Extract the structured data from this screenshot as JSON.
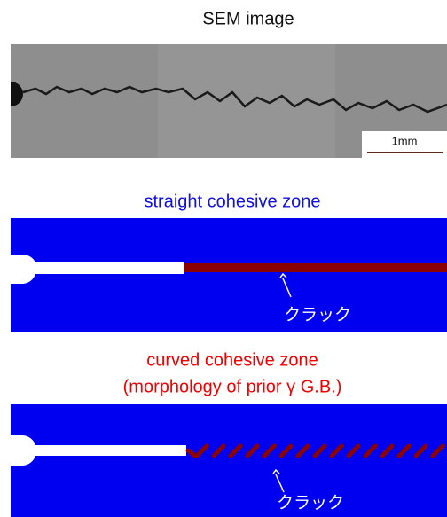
{
  "sem": {
    "title": "SEM image",
    "scale_bar": "1mm"
  },
  "straight": {
    "title": "straight cohesive zone",
    "crack_label": "クラック"
  },
  "curved": {
    "title": "curved cohesive zone",
    "subtitle": "(morphology of prior γ G.B.)",
    "crack_label": "クラック"
  }
}
